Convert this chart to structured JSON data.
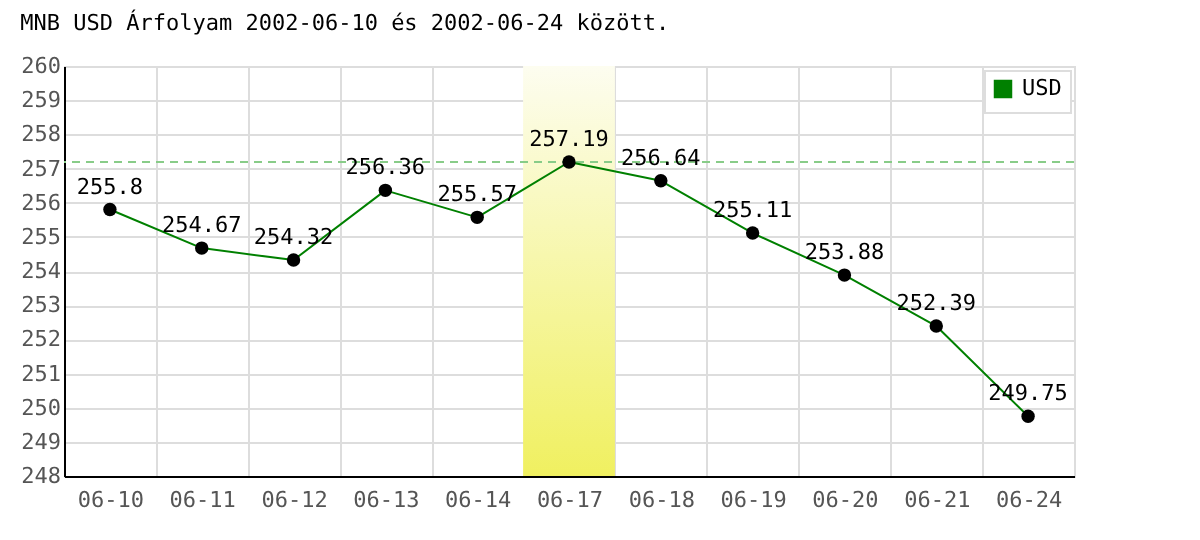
{
  "chart_data": {
    "type": "line",
    "title": "MNB USD Árfolyam 2002-06-10 és 2002-06-24 között.",
    "categories": [
      "06-10",
      "06-11",
      "06-12",
      "06-13",
      "06-14",
      "06-17",
      "06-18",
      "06-19",
      "06-20",
      "06-21",
      "06-24"
    ],
    "series": [
      {
        "name": "USD",
        "color": "#008000",
        "values": [
          255.8,
          254.67,
          254.32,
          256.36,
          255.57,
          257.19,
          256.64,
          255.11,
          253.88,
          252.39,
          249.75
        ]
      }
    ],
    "ylim": [
      248,
      260
    ],
    "yticks": [
      248,
      249,
      250,
      251,
      252,
      253,
      254,
      255,
      256,
      257,
      258,
      259,
      260
    ],
    "grid": true,
    "legend": "top right",
    "marker": "circle",
    "line_style": "solid",
    "data_labels": true,
    "ref_lines": [
      {
        "axis": "y",
        "value": 257.19,
        "color": "#88cc88",
        "line_style": "dashed"
      }
    ],
    "bands": [
      {
        "axis": "x",
        "from": "06-17",
        "to": "06-17",
        "color": "#f0f060"
      }
    ]
  }
}
